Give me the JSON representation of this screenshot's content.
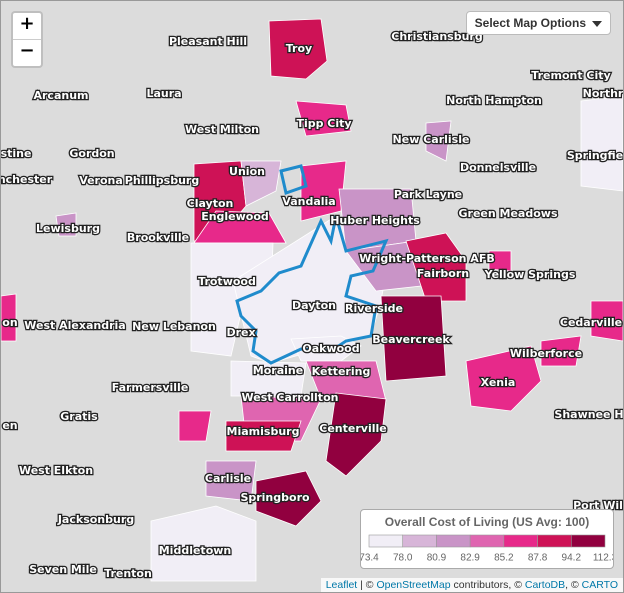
{
  "places": [
    "Pleasant Hill",
    "Troy",
    "Christiansburg",
    "Tremont City",
    "Northr",
    "Arcanum",
    "Laura",
    "North Hampton",
    "West Milton",
    "Tipp City",
    "New Carlisle",
    "stine",
    "Gordon",
    "Donnelsville",
    "Springfie",
    "Union",
    "Phillipsburg",
    "nchester",
    "Verona",
    "Park Layne",
    "Clayton",
    "Vandalia",
    "Huber Heights",
    "Green Meadows",
    "Englewood",
    "Lewisburg",
    "Brookville",
    "Wright-Patterson AFB",
    "Fairborn",
    "Yellow Springs",
    "Trotwood",
    "Dayton",
    "Riverside",
    "on",
    "West Alexandria",
    "New Lebanon",
    "Drex",
    "Cedarville",
    "Beavercreek",
    "Oakwood",
    "Wilberforce",
    "Kettering",
    "Moraine",
    "Farmersville",
    "Xenia",
    "West Carrollton",
    "Gratis",
    "Shawnee H",
    "en",
    "Centerville",
    "Miamisburg",
    "West Elkton",
    "Carlisle",
    "Springboro",
    "Port Wil",
    "Jacksonburg",
    "Middletown",
    "Seven Mile",
    "Trenton"
  ],
  "controls": {
    "zoom_in": "+",
    "zoom_out": "−",
    "options_button": "Select Map Options"
  },
  "legend": {
    "title": "Overall Cost of Living (US Avg: 100)",
    "breaks": [
      73.4,
      {
        "value": 78,
        "label": "78.0"
      },
      80.9,
      82.9,
      85.2,
      87.8,
      94.2,
      112.3
    ],
    "colors": [
      "#f1eef6",
      "#d7b5d8",
      "#c994c7",
      "#df65b0",
      "#e7298a",
      "#ce1256",
      "#91003f"
    ]
  },
  "attribution": {
    "leaflet": "Leaflet",
    "sep1": " | © ",
    "osm": "OpenStreetMap",
    "mid": " contributors, © ",
    "cartodb": "CartoDB",
    "sep2": ", © ",
    "carto": "CARTO"
  }
}
